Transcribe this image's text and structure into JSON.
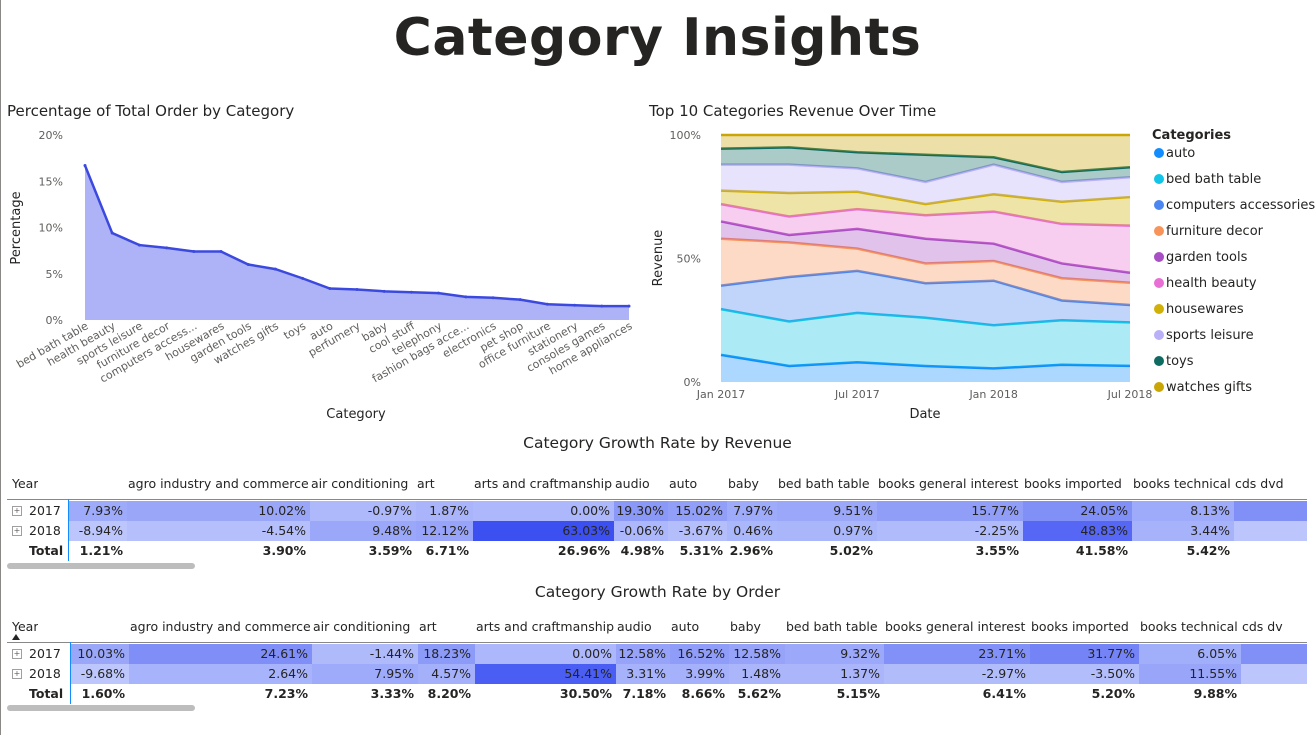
{
  "page_title": "Category Insights",
  "chart_data": [
    {
      "type": "area",
      "title": "Percentage of Total Order by Category",
      "xlabel": "Category",
      "ylabel": "Percentage",
      "ylim": [
        0,
        20
      ],
      "yticks": [
        "0%",
        "5%",
        "10%",
        "15%",
        "20%"
      ],
      "categories": [
        "bed bath table",
        "health beauty",
        "sports leisure",
        "furniture decor",
        "computers access...",
        "housewares",
        "garden tools",
        "watches gifts",
        "toys",
        "auto",
        "perfumery",
        "baby",
        "cool stuff",
        "telephony",
        "fashion bags acce...",
        "electronics",
        "pet shop",
        "office furniture",
        "stationery",
        "consoles games",
        "home appliances"
      ],
      "values": [
        16.7,
        9.4,
        8.1,
        7.8,
        7.4,
        7.4,
        6.0,
        5.5,
        4.5,
        3.4,
        3.3,
        3.1,
        3.0,
        2.9,
        2.5,
        2.4,
        2.2,
        1.7,
        1.6,
        1.5,
        1.5
      ],
      "color": "#3b49df",
      "fill": "#aeb3f7",
      "grid": false
    },
    {
      "type": "area",
      "title": "Top 10 Categories Revenue Over Time",
      "xlabel": "Date",
      "ylabel": "Revenue",
      "ylim": [
        0,
        100
      ],
      "yticks": [
        "0%",
        "50%",
        "100%"
      ],
      "xticks": [
        "Jan 2017",
        "Jul 2017",
        "Jan 2018",
        "Jul 2018"
      ],
      "x": [
        "2017-01",
        "2017-04",
        "2017-07",
        "2017-10",
        "2018-01",
        "2018-04",
        "2018-07"
      ],
      "stacked_percent": true,
      "legend_title": "Categories",
      "legend_position": "right",
      "series": [
        {
          "name": "auto",
          "color": "#118dff",
          "values": [
            11,
            6.5,
            8,
            6.5,
            5.5,
            7,
            6.5
          ]
        },
        {
          "name": "bed bath table",
          "color": "#12c4e5",
          "values": [
            18.5,
            18,
            20,
            19.5,
            17.5,
            18,
            17.5
          ]
        },
        {
          "name": "computers accessories",
          "color": "#4c86f0",
          "values": [
            9.5,
            18,
            17,
            14,
            18,
            8,
            7
          ]
        },
        {
          "name": "furniture decor",
          "color": "#f8945a",
          "values": [
            19,
            14,
            9,
            8,
            8,
            9,
            9
          ]
        },
        {
          "name": "garden tools",
          "color": "#a84fc4",
          "values": [
            7,
            3,
            8,
            10,
            7,
            6,
            4
          ]
        },
        {
          "name": "health beauty",
          "color": "#e86fd3",
          "values": [
            7,
            7.5,
            8,
            9.5,
            13,
            16,
            19
          ]
        },
        {
          "name": "housewares",
          "color": "#d1b107",
          "values": [
            5.5,
            9.5,
            7,
            4.5,
            7,
            9,
            11.5
          ]
        },
        {
          "name": "sports leisure",
          "color": "#bab0f8",
          "values": [
            10.5,
            11.5,
            9.5,
            9,
            12,
            8,
            8
          ]
        },
        {
          "name": "toys",
          "color": "#0f6b62",
          "values": [
            6.5,
            7,
            6.5,
            11,
            3,
            4,
            4
          ]
        },
        {
          "name": "watches gifts",
          "color": "#c9a505",
          "values": [
            5.5,
            5,
            7,
            8,
            9,
            15,
            13
          ]
        }
      ]
    }
  ],
  "growth_revenue": {
    "title": "Category Growth Rate by Revenue",
    "row_header": "Year",
    "columns": [
      "",
      "agro industry and commerce",
      "air conditioning",
      "art",
      "arts and craftmanship",
      "audio",
      "auto",
      "baby",
      "bed bath table",
      "books general interest",
      "books imported",
      "books technical",
      "cds dvd"
    ],
    "rows": [
      {
        "label": "2017",
        "values": [
          "7.93%",
          "10.02%",
          "-0.97%",
          "1.87%",
          "0.00%",
          "19.30%",
          "15.02%",
          "7.97%",
          "9.51%",
          "15.77%",
          "24.05%",
          "8.13%",
          ""
        ]
      },
      {
        "label": "2018",
        "values": [
          "-8.94%",
          "-4.54%",
          "9.48%",
          "12.12%",
          "63.03%",
          "-0.06%",
          "-3.67%",
          "0.46%",
          "0.97%",
          "-2.25%",
          "48.83%",
          "3.44%",
          ""
        ]
      }
    ],
    "total": {
      "label": "Total",
      "values": [
        "1.21%",
        "3.90%",
        "3.59%",
        "6.71%",
        "26.96%",
        "4.98%",
        "5.31%",
        "2.96%",
        "5.02%",
        "3.55%",
        "41.58%",
        "5.42%",
        ""
      ]
    }
  },
  "growth_order": {
    "title": "Category Growth Rate by Order",
    "row_header": "Year",
    "columns": [
      "",
      "agro industry and commerce",
      "air conditioning",
      "art",
      "arts and craftmanship",
      "audio",
      "auto",
      "baby",
      "bed bath table",
      "books general interest",
      "books imported",
      "books technical",
      "cds dv"
    ],
    "rows": [
      {
        "label": "2017",
        "values": [
          "10.03%",
          "24.61%",
          "-1.44%",
          "18.23%",
          "0.00%",
          "12.58%",
          "16.52%",
          "12.58%",
          "9.32%",
          "23.71%",
          "31.77%",
          "6.05%",
          ""
        ]
      },
      {
        "label": "2018",
        "values": [
          "-9.68%",
          "2.64%",
          "7.95%",
          "4.57%",
          "54.41%",
          "3.31%",
          "3.99%",
          "1.48%",
          "1.37%",
          "-2.97%",
          "-3.50%",
          "11.55%",
          ""
        ]
      }
    ],
    "total": {
      "label": "Total",
      "values": [
        "1.60%",
        "7.23%",
        "3.33%",
        "8.20%",
        "30.50%",
        "7.18%",
        "8.66%",
        "5.62%",
        "5.15%",
        "6.41%",
        "5.20%",
        "9.88%",
        ""
      ]
    }
  }
}
